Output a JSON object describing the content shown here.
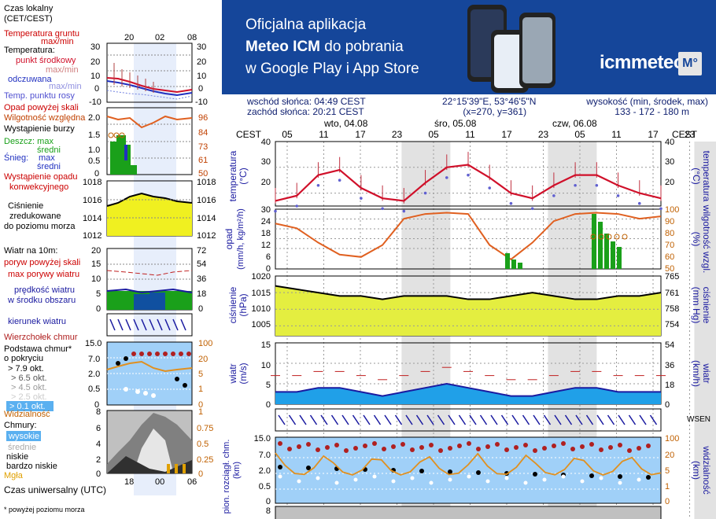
{
  "banner": {
    "line1": "Oficjalna aplikacja",
    "line2_bold": "Meteo ICM",
    "line2_rest": " do pobrania",
    "line3": "w Google Play i App Store",
    "brand": "icmmeteo",
    "badge": "M°"
  },
  "info": {
    "sunrise": "wschód słońca: 04:49 CEST",
    "sunset": "zachód słońca: 20:21 CEST",
    "coords": "22°15'39\"E, 53°46'5\"N",
    "grid": "(x=270,  y=361)",
    "elev_label": "wysokość (min, środek, max)",
    "elev_values": "133 - 172 - 180 m"
  },
  "legend": {
    "time_local": "Czas lokalny",
    "time_local2": "(CET/CEST)",
    "time_local_ticks": [
      "20",
      "02",
      "08"
    ],
    "ground_temp": "Temperatura gruntu",
    "ground_temp2": "max/min",
    "temperature": "Temperatura:",
    "mid_point": "punkt środkowy",
    "max_min": "max/min",
    "feels": "odczuwana",
    "feels_range": "max/min",
    "dew": "Temp. punktu rosy",
    "temp_ticks": [
      "30",
      "20",
      "10",
      "0",
      "-10"
    ],
    "precip_above": "Opad powyżej skali",
    "humidity": "Wilgotność względna",
    "storm": "Wystąpienie burzy",
    "rain": "Deszcz: max",
    "rain_avg": "średni",
    "snow": "Śnieg:",
    "snow_max": "max",
    "snow_avg": "średni",
    "conv": "Wystąpienie opadu",
    "conv2": "konwekcyjnego",
    "precip_ticks": [
      "2.0",
      "1.5",
      "1.0",
      "0.5",
      "0"
    ],
    "hum_ticks": [
      "96",
      "84",
      "73",
      "61",
      "50"
    ],
    "pressure": "Ciśnienie",
    "pressure2": "zredukowane",
    "pressure3": "do poziomu morza",
    "pres_ticks": [
      "1018",
      "1016",
      "1014",
      "1012"
    ],
    "wind10": "Wiatr na 10m:",
    "gust_above": "poryw powyżej skali",
    "max_gust": "max porywy wiatru",
    "wind_speed": "prędkość wiatru",
    "wind_speed2": "w środku obszaru",
    "wind_ticks": [
      "20",
      "15",
      "10",
      "5",
      "0"
    ],
    "wind_kmh_ticks": [
      "72",
      "54",
      "36",
      "18",
      "0"
    ],
    "wind_dir": "kierunek wiatru",
    "cloud_top": "Wierzchołek chmur",
    "cloud_base": "Podstawa chmur*",
    "cloud_base2": "o pokryciu",
    "okt1": "> 7.9 okt.",
    "okt2": "> 6.5 okt.",
    "okt3": "> 4.5 okt.",
    "okt4": "> 2.5 okt.",
    "okt5": "> 0.1 okt.",
    "cb_ticks": [
      "15.0",
      "7.0",
      "2.0",
      "0.5",
      "0"
    ],
    "vis_ticks": [
      "100",
      "20",
      "5",
      "1",
      "0"
    ],
    "visibility": "Widzialność",
    "clouds": "Chmury:",
    "cl_high": "wysokie",
    "cl_mid": "średnie",
    "cl_low": "niskie",
    "cl_vlow": "bardzo niskie",
    "fog": "Mgła",
    "cl_ticks": [
      "8",
      "6",
      "4",
      "2",
      "0"
    ],
    "cl_right_ticks": [
      "1",
      "0.75",
      "0.5",
      "0.25",
      "0"
    ],
    "utc": "Czas uniwersalny (UTC)",
    "utc_ticks": [
      "18",
      "00",
      "06"
    ],
    "footnote": "* powyżej poziomu morza"
  },
  "main": {
    "cest": "CEST",
    "days": [
      "wto, 04.08",
      "śro, 05.08",
      "czw, 06.08"
    ],
    "hours": [
      "05",
      "11",
      "17",
      "23",
      "05",
      "11",
      "17",
      "23",
      "05",
      "11",
      "17",
      "23",
      "05"
    ],
    "temp_label": "temperatura",
    "temp_unit": "(°C)",
    "temp_ticks": [
      "40",
      "30",
      "20"
    ],
    "precip_label": "opad",
    "precip_unit": "(mm/h, kg/m²/h)",
    "precip_ticks": [
      "30",
      "24",
      "18",
      "12",
      "6",
      "0"
    ],
    "hum_label": "wilgotność wzgl.",
    "hum_unit": "(%)",
    "hum_ticks": [
      "100",
      "90",
      "80",
      "70",
      "60",
      "50"
    ],
    "pres_label": "ciśnienie",
    "pres_unit": "(hPa)",
    "pres_ticks": [
      "1020",
      "1015",
      "1010",
      "1005"
    ],
    "mmhg_label": "ciśnienie",
    "mmhg_unit": "(mm Hg)",
    "mmhg_ticks": [
      "765",
      "761",
      "758",
      "754"
    ],
    "wind_label": "wiatr",
    "wind_unit": "(m/s)",
    "wind_ticks": [
      "15",
      "10",
      "5",
      "0"
    ],
    "windkmh_unit": "(km/h)",
    "windkmh_ticks": [
      "54",
      "36",
      "18",
      "0"
    ],
    "cb_label": "pion. rozciągł. chm.",
    "cb_unit": "(km)",
    "cb_ticks": [
      "15.0",
      "7.0",
      "2.0",
      "0.5",
      "0"
    ],
    "vis_label": "widzialność",
    "vis_unit": "(km)",
    "vis_ticks": [
      "100",
      "20",
      "5",
      "1",
      "0"
    ],
    "cl_ticks": [
      "8"
    ],
    "wsen": "WSEN"
  },
  "colors": {
    "temp": "#d0102a",
    "dew": "#5050d0",
    "humidity": "#e06020",
    "rain": "#1aa01a",
    "pressure_fill": "#f0f020",
    "wind_fill": "#1090e0",
    "night": "#d8d8d8"
  },
  "chart_data": {
    "type": "line",
    "x_hours_cest": [
      "05",
      "11",
      "17",
      "23",
      "05",
      "11",
      "17",
      "23",
      "05",
      "11",
      "17",
      "23",
      "05"
    ],
    "series": [
      {
        "name": "temperatura",
        "values": [
          17,
          19,
          27,
          29,
          22,
          18,
          17,
          24,
          30,
          31,
          26,
          20,
          18,
          23,
          27,
          27,
          23,
          20,
          18
        ]
      },
      {
        "name": "wilgotność wzgl.",
        "values": [
          88,
          84,
          72,
          62,
          60,
          70,
          92,
          96,
          97,
          96,
          70,
          58,
          72,
          90,
          96,
          97,
          96,
          92,
          94
        ]
      },
      {
        "name": "ciśnienie",
        "values": [
          1017,
          1016,
          1015,
          1014,
          1014,
          1013,
          1014,
          1014,
          1014,
          1013,
          1013,
          1014,
          1015,
          1014,
          1013,
          1013,
          1014,
          1014,
          1015
        ]
      },
      {
        "name": "prędkość wiatru",
        "values": [
          3,
          3,
          4,
          4,
          3,
          2,
          3,
          4,
          5,
          4,
          3,
          2,
          2,
          3,
          4,
          4,
          3,
          3,
          3
        ]
      }
    ],
    "temp_ylim": [
      15,
      40
    ],
    "pres_ylim": [
      1002,
      1020
    ],
    "wind_ylim": [
      0,
      15
    ],
    "hum_ylim": [
      50,
      100
    ]
  }
}
